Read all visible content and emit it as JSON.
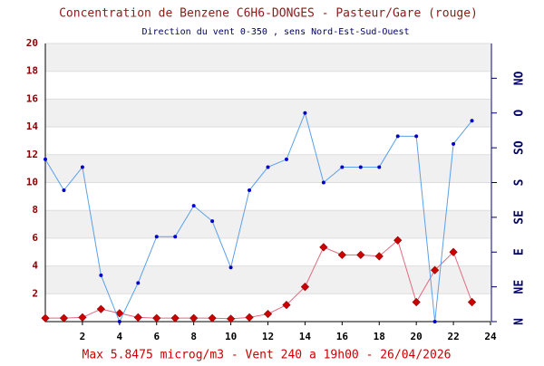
{
  "chart_data": {
    "type": "line",
    "title": "Concentration de Benzene C6H6-DONGES - Pasteur/Gare (rouge)",
    "subtitle": "Direction du vent 0-350 , sens Nord-Est-Sud-Ouest",
    "annotation": "Max 5.8475 microg/m3 - Vent 240  a 19h00 - 26/04/2026",
    "x": [
      0,
      1,
      2,
      3,
      4,
      5,
      6,
      7,
      8,
      9,
      10,
      11,
      12,
      13,
      14,
      15,
      16,
      17,
      18,
      19,
      20,
      21,
      22,
      23
    ],
    "series": [
      {
        "name": "Benzene",
        "color": "#e06a80",
        "marker_color": "#cc0000",
        "values": [
          0.25,
          0.25,
          0.3,
          0.9,
          0.6,
          0.3,
          0.25,
          0.25,
          0.25,
          0.25,
          0.2,
          0.3,
          0.55,
          1.2,
          2.5,
          5.35,
          4.8,
          4.8,
          4.7,
          5.8475,
          1.4,
          3.7,
          5.0,
          1.4
        ]
      },
      {
        "name": "Vent",
        "color": "#5aa0e8",
        "marker_color": "#0000cc",
        "axis": "y2",
        "values": [
          210,
          170,
          200,
          60,
          0,
          50,
          110,
          110,
          150,
          130,
          70,
          170,
          200,
          210,
          270,
          180,
          200,
          200,
          200,
          240,
          240,
          0,
          230,
          260
        ]
      }
    ],
    "xlim": [
      0,
      24
    ],
    "xticks": [
      2,
      4,
      6,
      8,
      10,
      12,
      14,
      16,
      18,
      20,
      22,
      24
    ],
    "ylim": [
      0,
      20
    ],
    "yticks": [
      2,
      4,
      6,
      8,
      10,
      12,
      14,
      16,
      18,
      20
    ],
    "y2lim": [
      0,
      360
    ],
    "y2ticks": [
      {
        "value": 0,
        "label": "N"
      },
      {
        "value": 45,
        "label": "NE"
      },
      {
        "value": 90,
        "label": "E"
      },
      {
        "value": 135,
        "label": "SE"
      },
      {
        "value": 180,
        "label": "S"
      },
      {
        "value": 225,
        "label": "SO"
      },
      {
        "value": 270,
        "label": "O"
      },
      {
        "value": 315,
        "label": "NO"
      }
    ],
    "grid": true
  }
}
